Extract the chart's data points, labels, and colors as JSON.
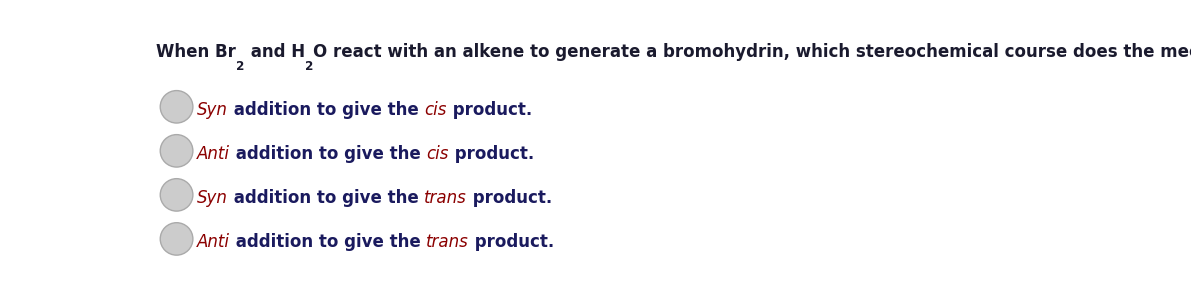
{
  "background_color": "#ffffff",
  "question_color": "#1a1a2e",
  "option_normal_color": "#1a1a5e",
  "option_italic_color": "#8B0000",
  "question_text_parts": [
    {
      "text": "When Br",
      "subscript": false
    },
    {
      "text": "2",
      "subscript": true
    },
    {
      "text": " and H",
      "subscript": false
    },
    {
      "text": "2",
      "subscript": true
    },
    {
      "text": "O react with an alkene to generate a bromohydrin, which stereochemical course does the mechanism take?",
      "subscript": false
    }
  ],
  "options": [
    [
      {
        "text": "Syn",
        "italic": true
      },
      {
        "text": " addition to give the ",
        "italic": false
      },
      {
        "text": "cis",
        "italic": true
      },
      {
        "text": " product.",
        "italic": false
      }
    ],
    [
      {
        "text": "Anti",
        "italic": true
      },
      {
        "text": " addition to give the ",
        "italic": false
      },
      {
        "text": "cis",
        "italic": true
      },
      {
        "text": " product.",
        "italic": false
      }
    ],
    [
      {
        "text": "Syn",
        "italic": true
      },
      {
        "text": " addition to give the ",
        "italic": false
      },
      {
        "text": "trans",
        "italic": true
      },
      {
        "text": " product.",
        "italic": false
      }
    ],
    [
      {
        "text": "Anti",
        "italic": true
      },
      {
        "text": " addition to give the ",
        "italic": false
      },
      {
        "text": "trans",
        "italic": true
      },
      {
        "text": " product.",
        "italic": false
      }
    ]
  ],
  "figsize": [
    11.91,
    3.01
  ],
  "dpi": 100,
  "question_fontsize": 12,
  "option_fontsize": 12,
  "circle_face_color": "#cccccc",
  "circle_edge_color": "#aaaaaa"
}
